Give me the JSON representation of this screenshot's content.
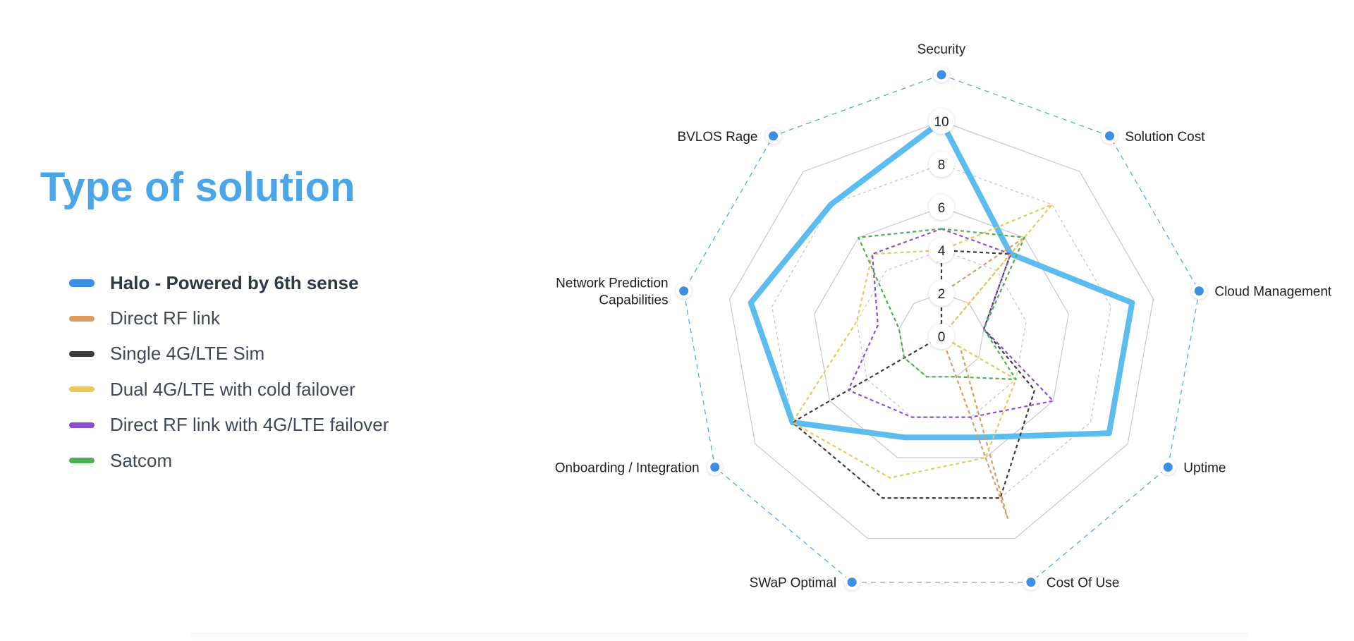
{
  "title": "Type of solution",
  "legend": [
    {
      "label": "Halo - Powered by 6th sense",
      "color": "#3d8fe5",
      "bold": true
    },
    {
      "label": "Direct RF link",
      "color": "#e09a5e",
      "bold": false
    },
    {
      "label": "Single 4G/LTE Sim",
      "color": "#3a3a3a",
      "bold": false
    },
    {
      "label": "Dual 4G/LTE with cold failover",
      "color": "#e8c95a",
      "bold": false
    },
    {
      "label": "Direct RF link with 4G/LTE failover",
      "color": "#8a4fd6",
      "bold": false
    },
    {
      "label": "Satcom",
      "color": "#4caf50",
      "bold": false
    }
  ],
  "chart_data": {
    "type": "radar",
    "axes": [
      "Security",
      "Solution Cost",
      "Cloud Management",
      "Uptime",
      "Cost Of Use",
      "SWaP Optimal",
      "Onboarding / Integration",
      "Network Prediction Capabilities",
      "BVLOS Rage"
    ],
    "axis_label_lines": [
      [
        "Security"
      ],
      [
        "Solution Cost"
      ],
      [
        "Cloud Management"
      ],
      [
        "Uptime"
      ],
      [
        "Cost Of Use"
      ],
      [
        "SWaP Optimal"
      ],
      [
        "Onboarding / Integration"
      ],
      [
        "Network Prediction",
        "Capabilities"
      ],
      [
        "BVLOS Rage"
      ]
    ],
    "ticks": [
      0,
      2,
      4,
      6,
      8,
      10
    ],
    "range": [
      0,
      10
    ],
    "series": [
      {
        "name": "Halo - Powered by 6th sense",
        "color": "#5bbcf0",
        "style": "solid",
        "values": [
          10,
          5,
          9,
          9,
          5,
          5,
          8,
          9,
          8
        ]
      },
      {
        "name": "Direct RF link",
        "color": "#e09a5e",
        "style": "dashed",
        "values": [
          2,
          6,
          0,
          1,
          9,
          0,
          0,
          0,
          0
        ]
      },
      {
        "name": "Single 4G/LTE Sim",
        "color": "#3a3a3a",
        "style": "dashed",
        "values": [
          4,
          5,
          2,
          5,
          8,
          8,
          8,
          0,
          0
        ]
      },
      {
        "name": "Dual 4G/LTE with cold failover",
        "color": "#e8c95a",
        "style": "dashed",
        "values": [
          4,
          8,
          0,
          4,
          6,
          7,
          8,
          4,
          5
        ]
      },
      {
        "name": "Direct RF link with 4G/LTE failover",
        "color": "#8a4fd6",
        "style": "dashed",
        "values": [
          5,
          5,
          2,
          6,
          4,
          4,
          5,
          3,
          5
        ]
      },
      {
        "name": "Satcom",
        "color": "#4caf50",
        "style": "dashed",
        "values": [
          5,
          6,
          2,
          4,
          2,
          2,
          2,
          2,
          6
        ]
      }
    ],
    "grid": true,
    "legend_position": "left"
  }
}
